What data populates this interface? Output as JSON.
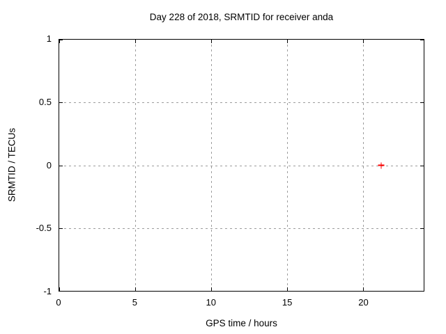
{
  "chart_data": {
    "type": "scatter",
    "title": "Day 228 of 2018, SRMTID for receiver anda",
    "xlabel": "GPS time / hours",
    "ylabel": "SRMTID / TECUs",
    "xlim": [
      0,
      24
    ],
    "ylim": [
      -1,
      1
    ],
    "xticks": [
      {
        "value": 0,
        "label": "0"
      },
      {
        "value": 5,
        "label": "5"
      },
      {
        "value": 10,
        "label": "10"
      },
      {
        "value": 15,
        "label": "15"
      },
      {
        "value": 20,
        "label": "20"
      }
    ],
    "yticks": [
      {
        "value": 1,
        "label": "1"
      },
      {
        "value": 0.5,
        "label": "0.5"
      },
      {
        "value": 0,
        "label": "0"
      },
      {
        "value": -0.5,
        "label": "-0.5"
      },
      {
        "value": -1,
        "label": "-1"
      }
    ],
    "grid": true,
    "legend": "none",
    "series": [
      {
        "marker": "plus",
        "color": "#ff0000",
        "points": [
          {
            "x": 21.2,
            "y": 0.0
          }
        ]
      }
    ],
    "colors": {
      "background": "#ffffff",
      "axis": "#000000",
      "grid": "#9c9c9c",
      "text": "#000000"
    }
  }
}
